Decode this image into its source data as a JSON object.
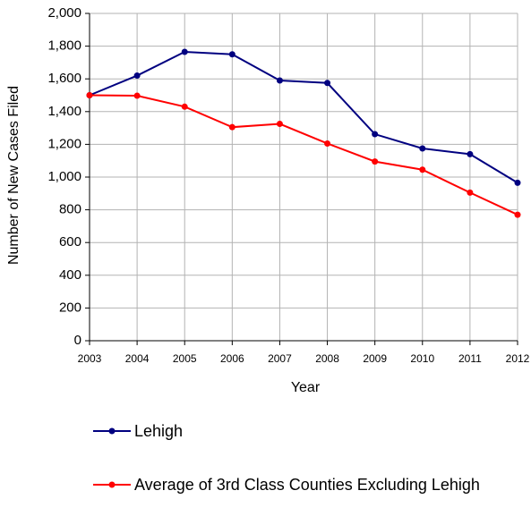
{
  "chart_data": {
    "type": "line",
    "x": [
      2003,
      2004,
      2005,
      2006,
      2007,
      2008,
      2009,
      2010,
      2011,
      2012
    ],
    "xlim": [
      2003,
      2012
    ],
    "xticks": [
      2003,
      2004,
      2005,
      2006,
      2007,
      2008,
      2009,
      2010,
      2011,
      2012
    ],
    "ylim": [
      0,
      2000
    ],
    "yticks": [
      0,
      200,
      400,
      600,
      800,
      {
        "value": 1000,
        "label": "1,000"
      },
      {
        "value": 1200,
        "label": "1,200"
      },
      {
        "value": 1400,
        "label": "1,400"
      },
      {
        "value": 1600,
        "label": "1,600"
      },
      {
        "value": 1800,
        "label": "1,800"
      },
      {
        "value": 2000,
        "label": "2,000"
      }
    ],
    "xlabel": "Year",
    "ylabel": "Number of New Cases Filed",
    "grid": true,
    "series": [
      {
        "name": "Lehigh",
        "color": "#000080",
        "values": [
          1500,
          1620,
          1765,
          1750,
          1590,
          1575,
          1262,
          1175,
          1140,
          965
        ]
      },
      {
        "name": "Average of 3rd Class Counties Excluding Lehigh",
        "color": "#ff0000",
        "values": [
          1500,
          1497,
          1430,
          1305,
          1325,
          1205,
          1095,
          1045,
          905,
          770
        ]
      }
    ]
  }
}
